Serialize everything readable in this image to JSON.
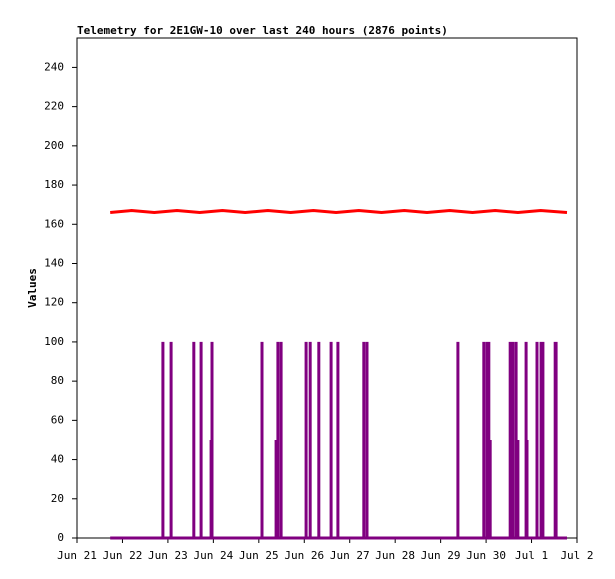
{
  "chart_data": {
    "type": "line",
    "title": "Telemetry for 2E1GW-10 over last 240 hours (2876 points)",
    "y_label": "Values",
    "xlim": [
      0,
      11
    ],
    "xticks": [
      {
        "value": 0,
        "label": "Jun 21"
      },
      {
        "value": 1,
        "label": "Jun 22"
      },
      {
        "value": 2,
        "label": "Jun 23"
      },
      {
        "value": 3,
        "label": "Jun 24"
      },
      {
        "value": 4,
        "label": "Jun 25"
      },
      {
        "value": 5,
        "label": "Jun 26"
      },
      {
        "value": 6,
        "label": "Jun 27"
      },
      {
        "value": 7,
        "label": "Jun 28"
      },
      {
        "value": 8,
        "label": "Jun 29"
      },
      {
        "value": 9,
        "label": "Jun 30"
      },
      {
        "value": 10,
        "label": "Jul 1"
      },
      {
        "value": 11,
        "label": "Jul 2"
      }
    ],
    "ylim": [
      0,
      255
    ],
    "yticks": [
      0,
      20,
      40,
      60,
      80,
      100,
      120,
      140,
      160,
      180,
      200,
      220,
      240
    ],
    "series": [
      {
        "color": "#ff0000",
        "x": [
          0.73,
          1.2,
          1.7,
          2.2,
          2.7,
          3.2,
          3.7,
          4.2,
          4.7,
          5.2,
          5.7,
          6.2,
          6.7,
          7.2,
          7.7,
          8.2,
          8.7,
          9.2,
          9.7,
          10.2,
          10.78
        ],
        "values": [
          166,
          167,
          166,
          167,
          166,
          167,
          166,
          167,
          166,
          167,
          166,
          167,
          166,
          167,
          166,
          167,
          166,
          167,
          166,
          167,
          166
        ]
      },
      {
        "color": "#800080",
        "x": [
          0.73,
          1.89,
          1.89,
          1.89,
          2.07,
          2.07,
          2.07,
          2.57,
          2.57,
          2.57,
          2.73,
          2.73,
          2.73,
          2.95,
          2.95,
          2.95,
          2.97,
          2.97,
          2.97,
          4.07,
          4.07,
          4.07,
          4.38,
          4.38,
          4.38,
          4.42,
          4.42,
          4.42,
          4.49,
          4.49,
          4.49,
          5.04,
          5.04,
          5.04,
          5.13,
          5.13,
          5.13,
          5.32,
          5.32,
          5.32,
          5.59,
          5.59,
          5.59,
          5.74,
          5.74,
          5.74,
          6.31,
          6.31,
          6.31,
          6.38,
          6.38,
          6.38,
          8.38,
          8.38,
          8.38,
          8.95,
          8.95,
          8.95,
          9.02,
          9.02,
          9.02,
          9.06,
          9.06,
          9.06,
          9.09,
          9.09,
          9.09,
          9.53,
          9.53,
          9.53,
          9.59,
          9.59,
          9.59,
          9.66,
          9.66,
          9.66,
          9.7,
          9.7,
          9.7,
          9.88,
          9.88,
          9.88,
          9.9,
          9.9,
          9.9,
          10.12,
          10.12,
          10.12,
          10.21,
          10.21,
          10.21,
          10.25,
          10.25,
          10.25,
          10.52,
          10.52,
          10.52,
          10.54,
          10.54,
          10.54,
          10.78
        ],
        "values": [
          0,
          0,
          100,
          0,
          0,
          100,
          0,
          0,
          100,
          0,
          0,
          100,
          0,
          0,
          50,
          0,
          0,
          100,
          0,
          0,
          100,
          0,
          0,
          50,
          0,
          0,
          100,
          0,
          0,
          100,
          0,
          0,
          100,
          0,
          0,
          100,
          0,
          0,
          100,
          0,
          0,
          100,
          0,
          0,
          100,
          0,
          0,
          100,
          0,
          0,
          100,
          0,
          0,
          100,
          0,
          0,
          100,
          0,
          0,
          100,
          0,
          0,
          100,
          0,
          0,
          50,
          0,
          0,
          100,
          0,
          0,
          100,
          0,
          0,
          100,
          0,
          0,
          50,
          0,
          0,
          100,
          0,
          0,
          50,
          0,
          0,
          100,
          0,
          0,
          100,
          0,
          0,
          100,
          0,
          0,
          100,
          0,
          0,
          100,
          0,
          0
        ]
      }
    ]
  }
}
